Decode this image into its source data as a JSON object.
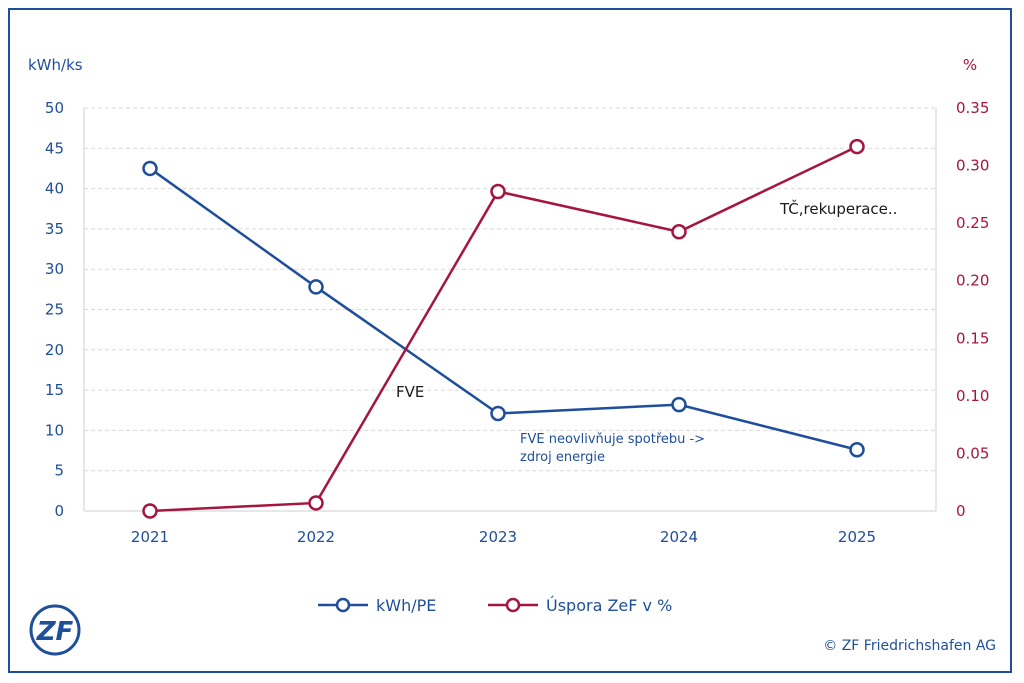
{
  "chart_data": {
    "type": "line",
    "x": [
      "2021",
      "2022",
      "2023",
      "2024",
      "2025"
    ],
    "series": [
      {
        "name": "kWh/PE",
        "axis": "left",
        "color": "#1f4e9a",
        "values": [
          42.5,
          27.8,
          12.1,
          13.2,
          7.6
        ]
      },
      {
        "name": "Úspora ZeF v %",
        "axis": "right",
        "color": "#a5163f",
        "values": [
          0.0,
          0.007,
          0.2775,
          0.2425,
          0.3165
        ]
      }
    ],
    "y_left": {
      "label": "kWh/ks",
      "range": [
        0,
        50
      ],
      "ticks": [
        "0",
        "5",
        "10",
        "15",
        "20",
        "25",
        "30",
        "35",
        "40",
        "45",
        "50"
      ]
    },
    "y_right": {
      "label": "%",
      "range": [
        0,
        0.35
      ],
      "ticks": [
        "0",
        "0.05",
        "0.10",
        "0.15",
        "0.20",
        "0.25",
        "0.30",
        "0.35"
      ]
    },
    "annotations": [
      {
        "text": "FVE"
      },
      {
        "text": "TČ,rekuperace.."
      },
      {
        "lines": [
          "FVE neovlivňuje spotřebu ->",
          "zdroj energie"
        ]
      }
    ],
    "grid": true,
    "legend_position": "bottom-center"
  },
  "logo": {
    "text": "ZF",
    "color": "#1f4e9a"
  },
  "copyright": "© ZF Friedrichshafen AG",
  "colors": {
    "frame": "#1f4e9a",
    "grid": "#d9d9d9"
  }
}
